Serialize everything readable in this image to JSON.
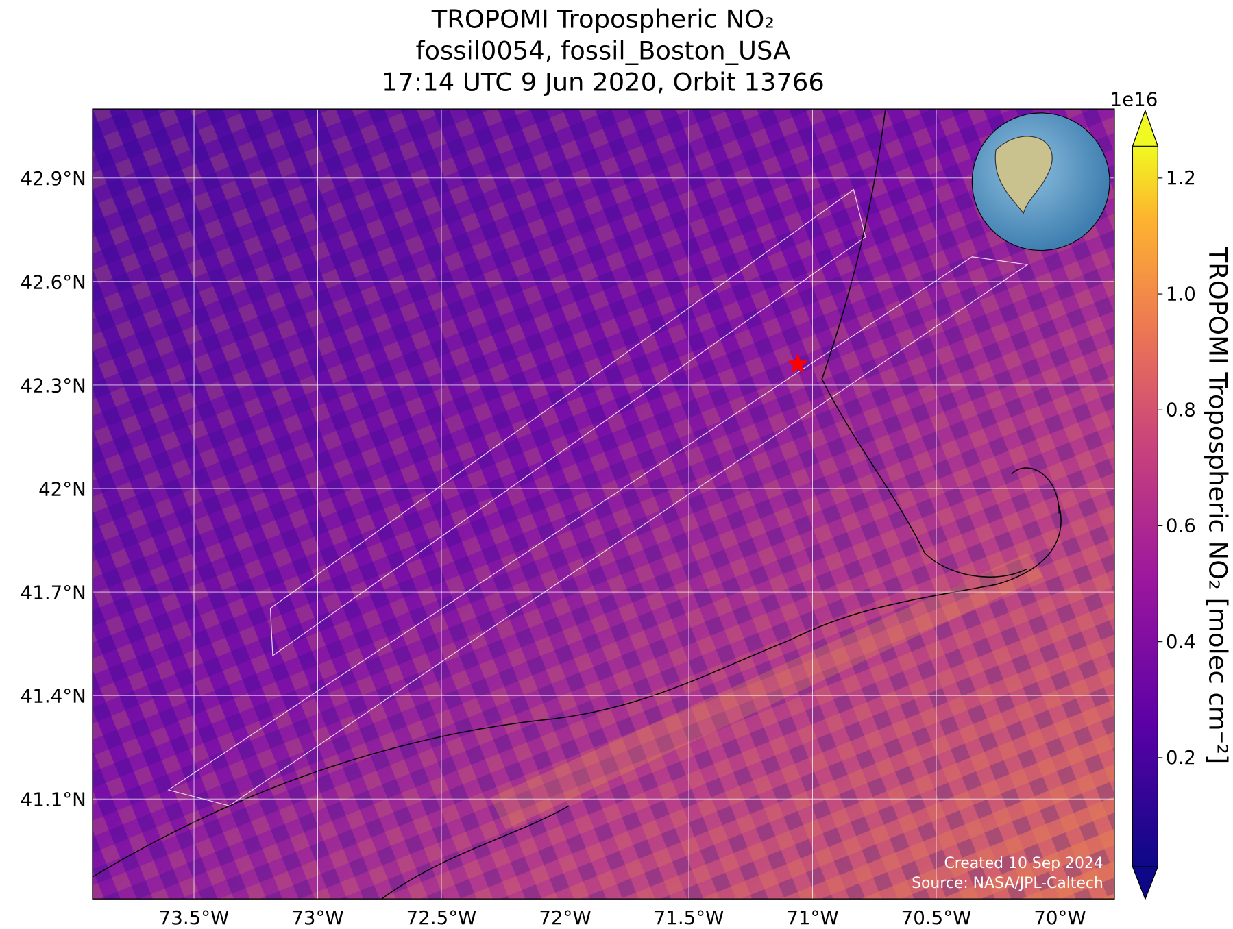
{
  "chart_data": {
    "type": "map",
    "title": [
      "TROPOMI Tropospheric NO₂",
      "fossil0054, fossil_Boston_USA",
      "17:14 UTC 9 Jun 2020, Orbit 13766"
    ],
    "xlim": [
      -73.91,
      -69.78
    ],
    "ylim": [
      40.81,
      43.1
    ],
    "xticks": [
      {
        "value": -73.5,
        "label": "73.5°W"
      },
      {
        "value": -73,
        "label": "73°W"
      },
      {
        "value": -72.5,
        "label": "72.5°W"
      },
      {
        "value": -72,
        "label": "72°W"
      },
      {
        "value": -71.5,
        "label": "71.5°W"
      },
      {
        "value": -71,
        "label": "71°W"
      },
      {
        "value": -70.5,
        "label": "70.5°W"
      },
      {
        "value": -70,
        "label": "70°W"
      }
    ],
    "yticks": [
      {
        "value": 41.1,
        "label": "41.1°N"
      },
      {
        "value": 41.4,
        "label": "41.4°N"
      },
      {
        "value": 41.7,
        "label": "41.7°N"
      },
      {
        "value": 42,
        "label": "42°N"
      },
      {
        "value": 42.3,
        "label": "42.3°N"
      },
      {
        "value": 42.6,
        "label": "42.6°N"
      },
      {
        "value": 42.9,
        "label": "42.9°N"
      }
    ],
    "grid": true,
    "marker": {
      "lon": -71.06,
      "lat": 42.36,
      "color": "#ff0000"
    },
    "colorbar": {
      "label": "TROPOMI Tropospheric NO₂ [molec cm⁻²]",
      "offset_label": "1e16",
      "lim": [
        0.012,
        1.255
      ],
      "ticks": [
        {
          "value": 0.2,
          "label": "0.2"
        },
        {
          "value": 0.4,
          "label": "0.4"
        },
        {
          "value": 0.6,
          "label": "0.6"
        },
        {
          "value": 0.8,
          "label": "0.8"
        },
        {
          "value": 1.0,
          "label": "1.0"
        },
        {
          "value": 1.2,
          "label": "1.2"
        }
      ]
    },
    "annotations": [
      "Created 10 Sep 2024",
      "Source: NASA/JPL-Caltech"
    ]
  }
}
